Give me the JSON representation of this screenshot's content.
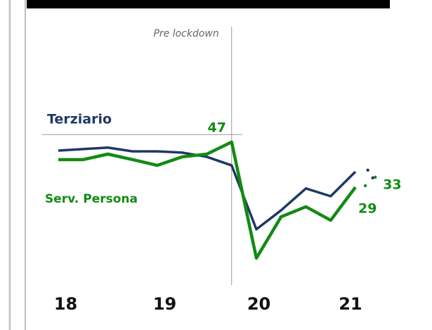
{
  "chart_data": {
    "type": "line",
    "x": [
      0,
      1,
      2,
      3,
      4,
      5,
      6,
      7,
      8,
      9,
      10,
      11,
      12
    ],
    "series": [
      {
        "name": "Terziario",
        "color": "#1f3864",
        "values": [
          43.6,
          44.2,
          44.8,
          43.3,
          43.3,
          42.8,
          41.1,
          37.7,
          12.2,
          19.8,
          28.5,
          25.4,
          35.2
        ],
        "projection": {
          "x": [
            12.5,
            12.7
          ],
          "values": [
            35.8,
            32.7
          ]
        }
      },
      {
        "name": "Serv. Persona",
        "color": "#138a13",
        "values": [
          40,
          40,
          42.2,
          40,
          37.7,
          41.1,
          42.2,
          47,
          0.7,
          17.2,
          21.2,
          15.8,
          29
        ],
        "projection": {
          "x": [
            12.4,
            12.8
          ],
          "values": [
            29.6,
            33
          ]
        }
      }
    ],
    "xlim": [
      -1,
      14
    ],
    "xticks": [
      {
        "value": 0.3,
        "label": "18"
      },
      {
        "value": 4.3,
        "label": "19"
      },
      {
        "value": 8.1,
        "label": "20"
      },
      {
        "value": 11.8,
        "label": "21"
      }
    ],
    "ylim": [
      -10,
      93
    ],
    "reference_line": {
      "value": 50
    },
    "lockdown": {
      "x": 7,
      "label": "Pre lockdown"
    }
  }
}
